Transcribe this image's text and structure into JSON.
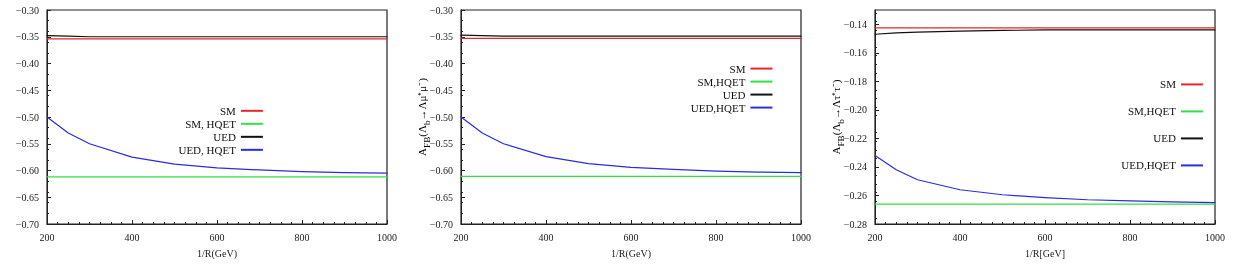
{
  "chart_data": [
    {
      "type": "line",
      "xlabel": "1/R(GeV)",
      "legend": "center",
      "marker": "none",
      "grid": false,
      "xlim": [
        200,
        1000
      ],
      "xticks": [
        200,
        400,
        600,
        800,
        1000
      ],
      "ylim": [
        -0.7,
        -0.3
      ],
      "yticks": [
        {
          "value": -0.7,
          "label": "−0.70"
        },
        {
          "value": -0.65,
          "label": "−0.65"
        },
        {
          "value": -0.6,
          "label": "−0.60"
        },
        {
          "value": -0.55,
          "label": "−0.55"
        },
        {
          "value": -0.5,
          "label": "−0.50"
        },
        {
          "value": -0.45,
          "label": "−0.45"
        },
        {
          "value": -0.4,
          "label": "−0.40"
        },
        {
          "value": -0.35,
          "label": "−0.35"
        },
        {
          "value": -0.3,
          "label": "−0.30"
        }
      ],
      "x": [
        200,
        250,
        300,
        400,
        500,
        600,
        700,
        800,
        900,
        1000
      ],
      "series": [
        {
          "name": "SM",
          "color": "#e8262a",
          "values": [
            -0.354,
            -0.354,
            -0.354,
            -0.354,
            -0.354,
            -0.354,
            -0.354,
            -0.354,
            -0.354,
            -0.354
          ]
        },
        {
          "name": "SM, HQET",
          "color": "#33e04a",
          "values": [
            -0.612,
            -0.612,
            -0.612,
            -0.612,
            -0.612,
            -0.612,
            -0.612,
            -0.612,
            -0.612,
            -0.612
          ]
        },
        {
          "name": "UED",
          "color": "#111111",
          "values": [
            -0.348,
            -0.349,
            -0.35,
            -0.35,
            -0.35,
            -0.35,
            -0.35,
            -0.35,
            -0.35,
            -0.35
          ]
        },
        {
          "name": "UED, HQET",
          "color": "#2b2be0",
          "values": [
            -0.5,
            -0.53,
            -0.55,
            -0.575,
            -0.588,
            -0.595,
            -0.599,
            -0.602,
            -0.604,
            -0.605
          ]
        }
      ]
    },
    {
      "type": "line",
      "xlabel": "1/R(GeV)",
      "ylabel": "A$_{FB}$(Λ$_{b}$→Λμ⁺μ⁻)",
      "legend": "top right",
      "marker": "none",
      "grid": false,
      "xlim": [
        200,
        1000
      ],
      "xticks": [
        200,
        400,
        600,
        800,
        1000
      ],
      "ylim": [
        -0.7,
        -0.3
      ],
      "yticks": [
        {
          "value": -0.7,
          "label": "−0.70"
        },
        {
          "value": -0.65,
          "label": "−0.65"
        },
        {
          "value": -0.6,
          "label": "−0.60"
        },
        {
          "value": -0.55,
          "label": "−0.55"
        },
        {
          "value": -0.5,
          "label": "−0.50"
        },
        {
          "value": -0.45,
          "label": "−0.45"
        },
        {
          "value": -0.4,
          "label": "−0.40"
        },
        {
          "value": -0.35,
          "label": "−0.35"
        },
        {
          "value": -0.3,
          "label": "−0.30"
        }
      ],
      "x": [
        200,
        250,
        300,
        400,
        500,
        600,
        700,
        800,
        900,
        1000
      ],
      "series": [
        {
          "name": "SM",
          "color": "#e8262a",
          "values": [
            -0.353,
            -0.353,
            -0.353,
            -0.353,
            -0.353,
            -0.353,
            -0.353,
            -0.353,
            -0.353,
            -0.353
          ]
        },
        {
          "name": "SM,HQET",
          "color": "#33e04a",
          "values": [
            -0.611,
            -0.611,
            -0.611,
            -0.611,
            -0.611,
            -0.611,
            -0.611,
            -0.611,
            -0.611,
            -0.611
          ]
        },
        {
          "name": "UED",
          "color": "#111111",
          "values": [
            -0.347,
            -0.348,
            -0.349,
            -0.349,
            -0.349,
            -0.349,
            -0.349,
            -0.349,
            -0.349,
            -0.349
          ]
        },
        {
          "name": "UED,HQET",
          "color": "#2b2be0",
          "values": [
            -0.5,
            -0.53,
            -0.55,
            -0.574,
            -0.587,
            -0.594,
            -0.598,
            -0.601,
            -0.603,
            -0.604
          ]
        }
      ]
    },
    {
      "type": "line",
      "xlabel": "1/R[GeV]",
      "ylabel": "A$_{FB}$(Λ$_{b}$→Λτ⁺τ⁻)",
      "legend": "right",
      "marker": "none",
      "grid": false,
      "xlim": [
        200,
        1000
      ],
      "xticks": [
        200,
        400,
        600,
        800,
        1000
      ],
      "ylim": [
        -0.28,
        -0.13
      ],
      "yticks": [
        {
          "value": -0.28,
          "label": "−0.28"
        },
        {
          "value": -0.26,
          "label": "−0.26"
        },
        {
          "value": -0.24,
          "label": "−0.24"
        },
        {
          "value": -0.22,
          "label": "−0.22"
        },
        {
          "value": -0.2,
          "label": "−0.20"
        },
        {
          "value": -0.18,
          "label": "−0.18"
        },
        {
          "value": -0.16,
          "label": "−0.16"
        },
        {
          "value": -0.14,
          "label": "−0.14"
        }
      ],
      "x": [
        200,
        250,
        300,
        400,
        500,
        600,
        700,
        800,
        900,
        1000
      ],
      "series": [
        {
          "name": "SM",
          "color": "#e8262a",
          "values": [
            -0.1425,
            -0.1425,
            -0.1425,
            -0.1425,
            -0.1425,
            -0.1425,
            -0.1425,
            -0.1425,
            -0.1425,
            -0.1425
          ]
        },
        {
          "name": "SM,HQET",
          "color": "#33e04a",
          "values": [
            -0.266,
            -0.266,
            -0.266,
            -0.266,
            -0.266,
            -0.266,
            -0.266,
            -0.266,
            -0.266,
            -0.266
          ]
        },
        {
          "name": "UED",
          "color": "#111111",
          "values": [
            -0.147,
            -0.146,
            -0.1455,
            -0.1448,
            -0.1443,
            -0.144,
            -0.144,
            -0.144,
            -0.144,
            -0.144
          ]
        },
        {
          "name": "UED,HQET",
          "color": "#2b2be0",
          "values": [
            -0.232,
            -0.242,
            -0.249,
            -0.256,
            -0.2595,
            -0.2615,
            -0.263,
            -0.2638,
            -0.2645,
            -0.265
          ]
        }
      ]
    }
  ]
}
